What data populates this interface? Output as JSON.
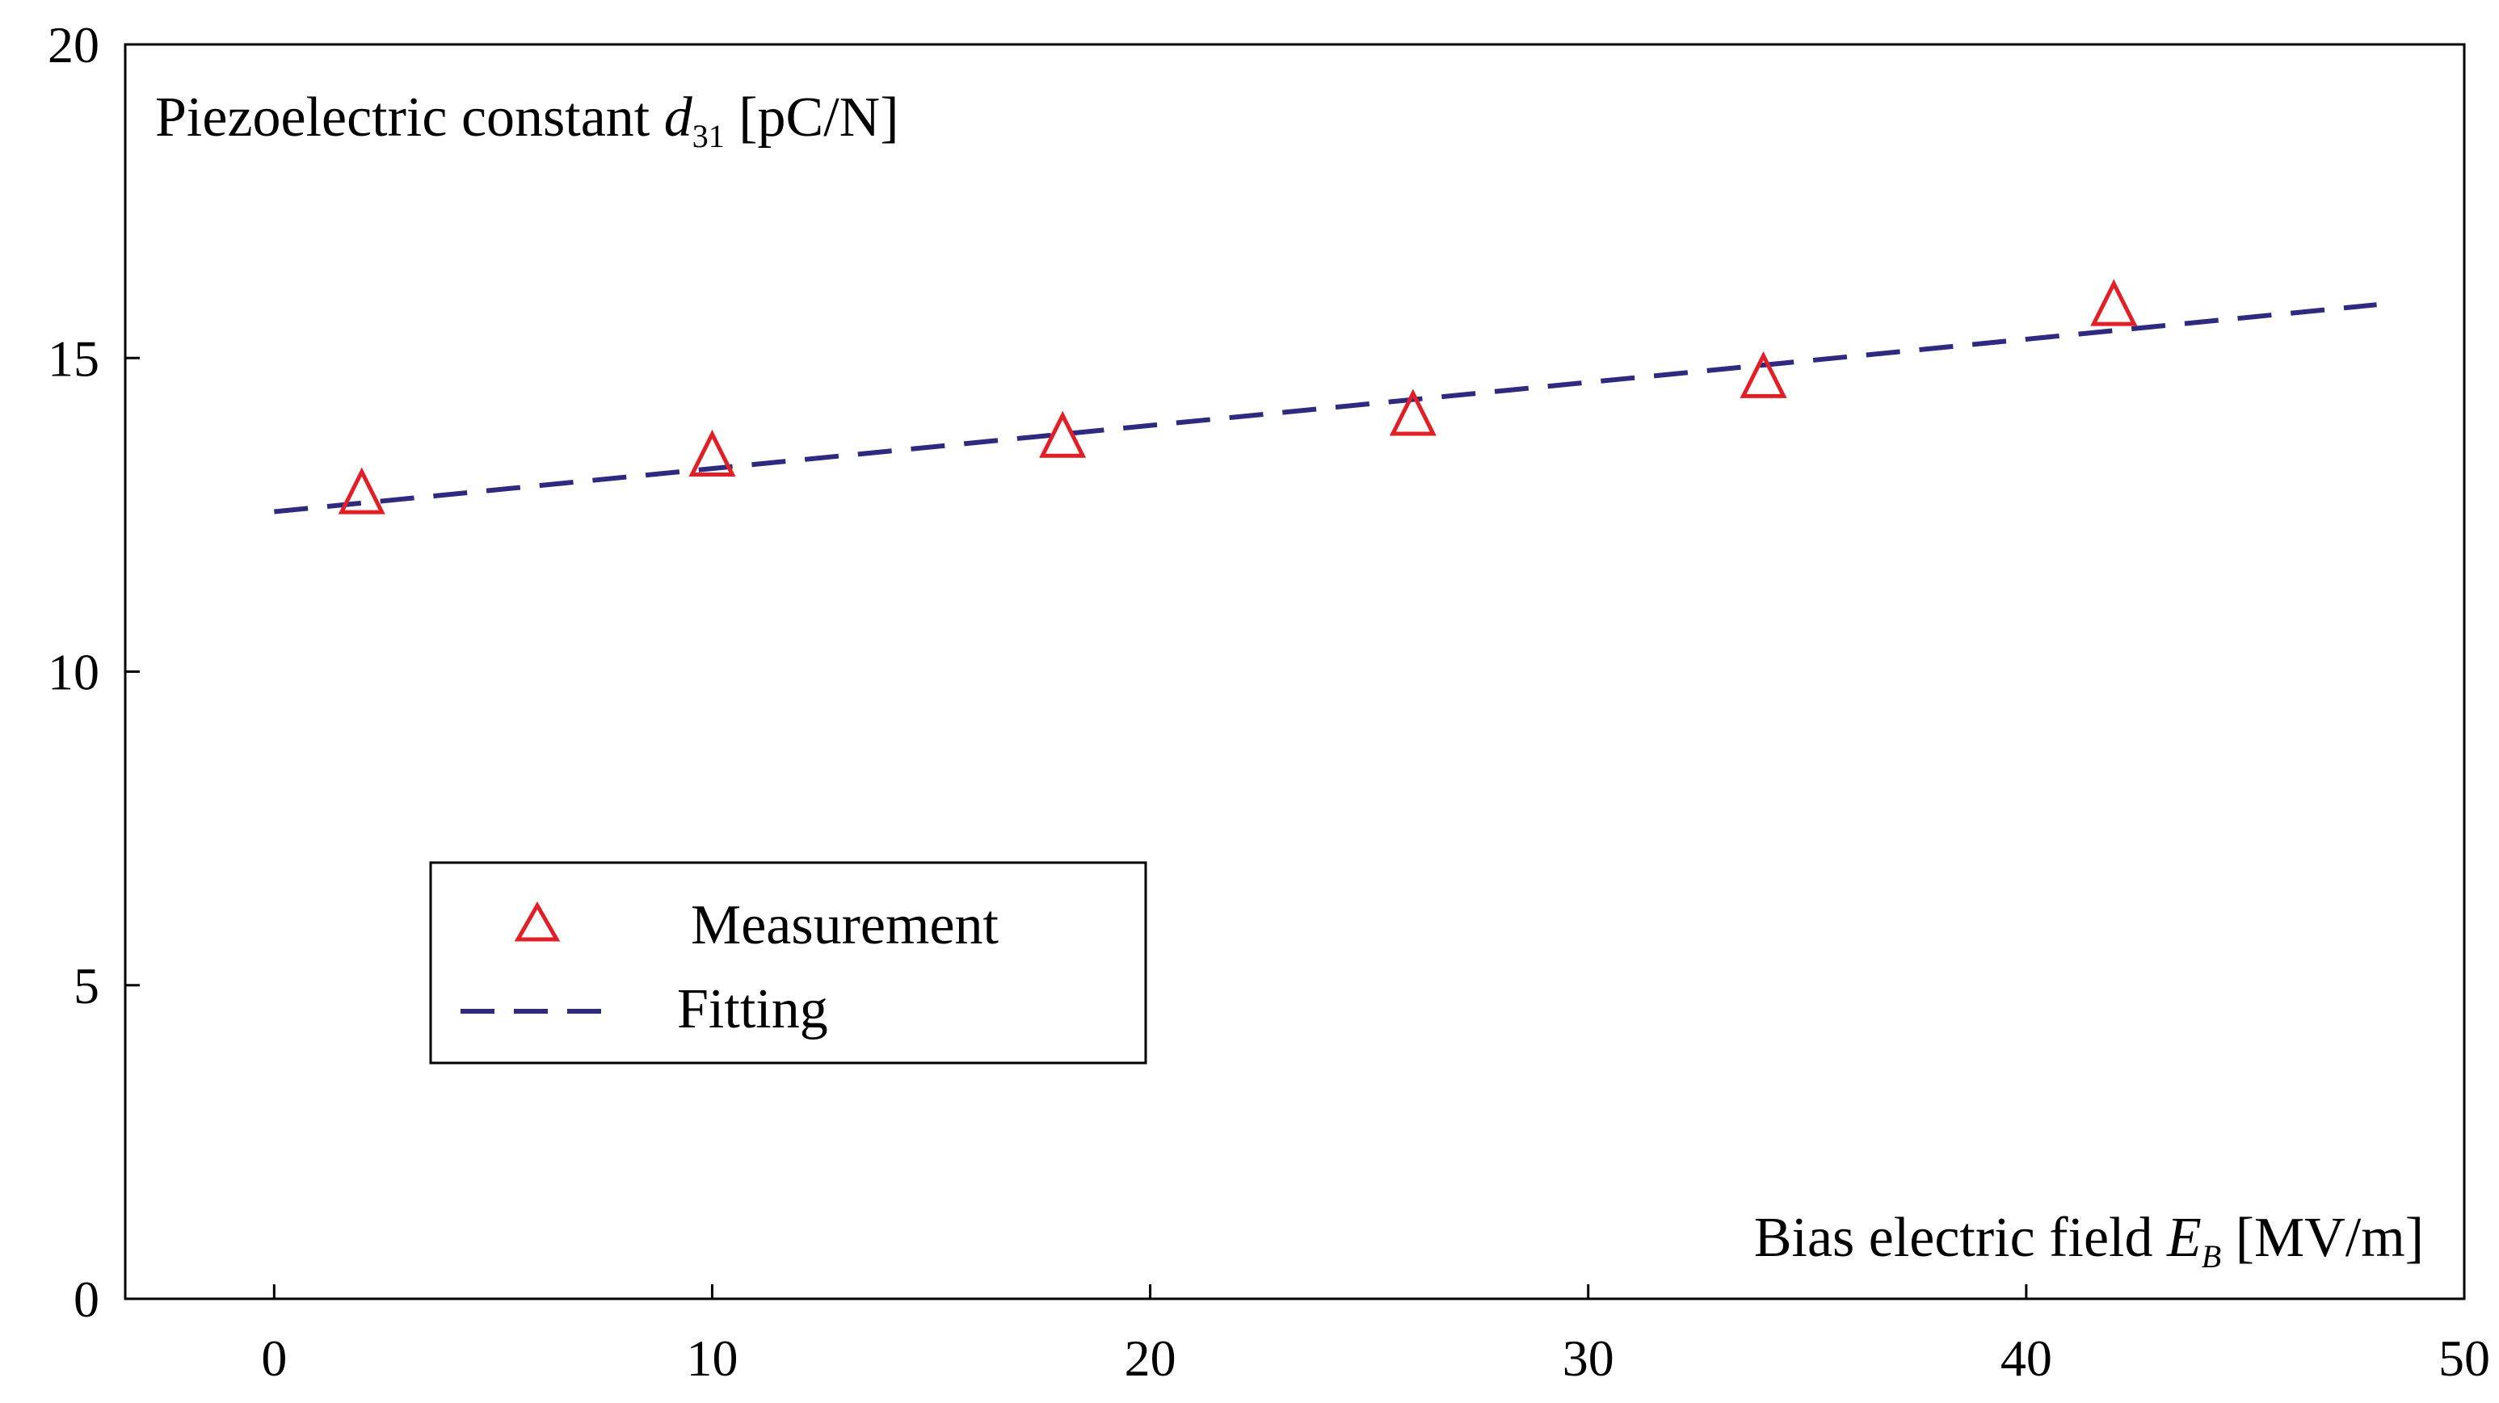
{
  "chart_data": {
    "type": "scatter",
    "title": "",
    "xlabel": {
      "text": "Bias electric field ",
      "symbol": "E",
      "subscript": "B",
      "unit": " [MV/m]"
    },
    "ylabel": {
      "text": "Piezoelectric constant ",
      "symbol": "d",
      "subscript": "31",
      "unit": " [pC/N]"
    },
    "xlim": [
      -3.4,
      50
    ],
    "ylim": [
      0,
      20
    ],
    "xticks": [
      0,
      10,
      20,
      30,
      40,
      50
    ],
    "yticks": [
      0,
      5,
      10,
      15,
      20
    ],
    "xtick_labels": [
      "0",
      "10",
      "20",
      "30",
      "40",
      "50"
    ],
    "ytick_labels": [
      "0",
      "5",
      "10",
      "15",
      "20"
    ],
    "grid": false,
    "legend_position": "lower-left",
    "series": [
      {
        "name": "Measurement",
        "kind": "markers",
        "marker": "triangle-open",
        "color": "#e01f26",
        "x": [
          2,
          10,
          18,
          26,
          34,
          42
        ],
        "y": [
          12.8,
          13.4,
          13.7,
          14.05,
          14.65,
          15.8
        ]
      },
      {
        "name": "Fitting",
        "kind": "line",
        "linestyle": "dashed",
        "color": "#2e2a7f",
        "x": [
          0,
          48
        ],
        "y": [
          12.55,
          15.85
        ]
      }
    ]
  }
}
